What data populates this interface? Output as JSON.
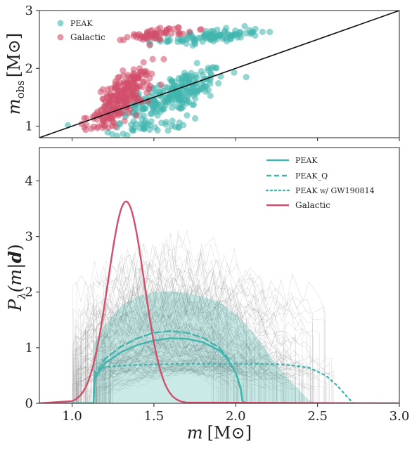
{
  "chart_data": [
    {
      "type": "scatter",
      "ylabel_main": "m",
      "ylabel_sub": "obs",
      "ylabel_unit": "[M⊙]",
      "xlim": [
        0.8,
        3.0
      ],
      "ylim": [
        0.8,
        3.0
      ],
      "yticks": [
        1,
        2,
        3
      ],
      "legend_position": "top-left",
      "reference_line": {
        "x": [
          0.8,
          3.0
        ],
        "y": [
          0.8,
          3.0
        ],
        "color": "#111111"
      },
      "series": [
        {
          "name": "PEAK",
          "color": "#3fb5ad",
          "clusters": [
            {
              "cx": 1.62,
              "cy": 1.55,
              "sx": 0.16,
              "sy": 0.28,
              "n": 230,
              "slope": 0.95
            },
            {
              "cx": 1.85,
              "cy": 2.55,
              "sx": 0.15,
              "sy": 0.09,
              "n": 100,
              "slope": 0.25
            },
            {
              "cx": 1.47,
              "cy": 1.0,
              "sx": 0.12,
              "sy": 0.1,
              "n": 40,
              "slope": 0.3
            }
          ]
        },
        {
          "name": "Galactic",
          "color": "#d24e6a",
          "clusters": [
            {
              "cx": 1.32,
              "cy": 1.55,
              "sx": 0.08,
              "sy": 0.28,
              "n": 210,
              "slope": 1.6
            },
            {
              "cx": 1.52,
              "cy": 2.6,
              "sx": 0.09,
              "sy": 0.08,
              "n": 60,
              "slope": 0.3
            },
            {
              "cx": 1.2,
              "cy": 1.1,
              "sx": 0.06,
              "sy": 0.14,
              "n": 40,
              "slope": 0.8
            }
          ]
        }
      ]
    },
    {
      "type": "line",
      "xlabel_main": "m",
      "xlabel_unit": "[M⊙]",
      "ylabel_main": "P",
      "ylabel_sub": "λ",
      "ylabel_arg": "(m|",
      "ylabel_bold": "d",
      "ylabel_close": ")",
      "xlim": [
        0.8,
        3.0
      ],
      "ylim": [
        0,
        4.6
      ],
      "xticks": [
        "1.0",
        "1.5",
        "2.0",
        "2.5",
        "3.0"
      ],
      "yticks": [
        0,
        1,
        2,
        3,
        4
      ],
      "legend_position": "top-right",
      "series": [
        {
          "name": "PEAK",
          "style": "solid",
          "color": "#3fb5ad",
          "x": [
            1.13,
            1.14,
            1.2,
            1.3,
            1.4,
            1.5,
            1.6,
            1.7,
            1.8,
            1.9,
            1.95,
            2.0,
            2.03,
            2.04,
            2.06
          ],
          "y": [
            0,
            0.45,
            0.72,
            0.92,
            1.05,
            1.13,
            1.17,
            1.16,
            1.1,
            0.95,
            0.8,
            0.55,
            0.28,
            0.05,
            0
          ]
        },
        {
          "name": "PEAK_Q",
          "style": "dashed",
          "color": "#3fb5ad",
          "x": [
            1.13,
            1.14,
            1.2,
            1.3,
            1.4,
            1.5,
            1.6,
            1.7,
            1.8,
            1.9,
            1.95,
            2.0,
            2.03,
            2.04,
            2.06
          ],
          "y": [
            0,
            0.5,
            0.8,
            1.02,
            1.17,
            1.27,
            1.3,
            1.27,
            1.18,
            1.0,
            0.82,
            0.55,
            0.25,
            0.05,
            0
          ]
        },
        {
          "name": "PEAK w/ GW190814",
          "style": "dotted",
          "color": "#3fb5ad",
          "x": [
            1.13,
            1.14,
            1.2,
            1.3,
            1.5,
            1.7,
            1.9,
            2.1,
            2.3,
            2.45,
            2.55,
            2.62,
            2.68,
            2.72
          ],
          "y": [
            0,
            0.58,
            0.65,
            0.68,
            0.7,
            0.71,
            0.71,
            0.71,
            0.7,
            0.64,
            0.5,
            0.32,
            0.12,
            0
          ]
        },
        {
          "name": "Galactic",
          "style": "solid",
          "color": "#d24e6a",
          "gaussian": {
            "mu": 1.33,
            "sigma": 0.11,
            "peak": 3.63,
            "from": 1.0,
            "to": 1.7
          }
        }
      ],
      "band": {
        "color": "#3fb5ad",
        "opacity": 0.28,
        "x": [
          1.13,
          1.2,
          1.3,
          1.4,
          1.5,
          1.6,
          1.7,
          1.8,
          1.9,
          2.0,
          2.1,
          2.2,
          2.3,
          2.4,
          2.45,
          2.5
        ],
        "upper": [
          1.05,
          1.4,
          1.75,
          1.93,
          2.0,
          2.02,
          1.98,
          1.92,
          1.82,
          1.6,
          1.3,
          0.9,
          0.5,
          0.2,
          0.05,
          0.0
        ]
      },
      "posterior_draws": {
        "count": 140,
        "color": "#6a6a6a"
      }
    }
  ]
}
